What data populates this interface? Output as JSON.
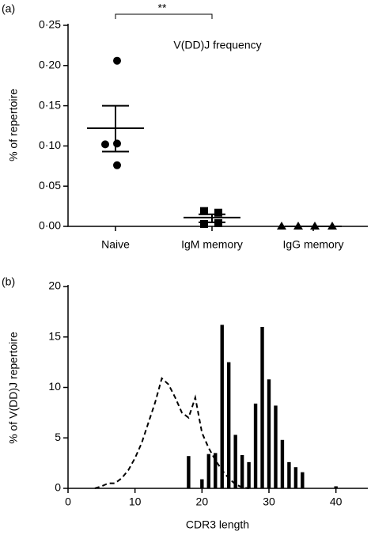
{
  "chart_data": [
    {
      "type": "dot",
      "panel": "(a)",
      "title": "V(DD)J frequency",
      "ylabel": "% of repertoire",
      "annotation": "**",
      "categories": [
        "Naive",
        "IgM memory",
        "IgG memory"
      ],
      "markers": [
        "circle",
        "square",
        "triangle"
      ],
      "points": [
        [
          0.206,
          0.102,
          0.103,
          0.076
        ],
        [
          0.019,
          0.017,
          0.003,
          0.004
        ],
        [
          0,
          0,
          0,
          0
        ]
      ],
      "means": [
        0.122,
        0.011,
        0
      ],
      "sem_upper": [
        0.15,
        0.015,
        0
      ],
      "sem_lower": [
        0.093,
        0.005,
        0
      ],
      "ylim": [
        0,
        0.25
      ],
      "yticks": [
        {
          "value": 0,
          "label": "0·00"
        },
        {
          "value": 0.05,
          "label": "0·05"
        },
        {
          "value": 0.1,
          "label": "0·10"
        },
        {
          "value": 0.15,
          "label": "0·15"
        },
        {
          "value": 0.2,
          "label": "0·20"
        },
        {
          "value": 0.25,
          "label": "0·25"
        }
      ],
      "color": "#000000"
    },
    {
      "type": "bar_line",
      "panel": "(b)",
      "xlabel": "CDR3 length",
      "ylabel": "% of V(DD)J repertoire",
      "series": [
        {
          "type": "bar",
          "color": "#000000",
          "x": [
            18,
            20,
            21,
            22,
            23,
            24,
            25,
            26,
            27,
            28,
            29,
            30,
            31,
            32,
            33,
            34,
            35,
            40
          ],
          "values": [
            3.2,
            0.9,
            3.4,
            3.5,
            16.2,
            12.5,
            5.3,
            3.3,
            2.6,
            8.4,
            16.0,
            10.8,
            8.2,
            4.8,
            2.6,
            2.1,
            1.6,
            0.2
          ]
        },
        {
          "type": "line",
          "color": "#000000",
          "dashed": true,
          "x": [
            4,
            5,
            6,
            7,
            8,
            9,
            10,
            11,
            12,
            13,
            14,
            15,
            16,
            17,
            18,
            19,
            20,
            21,
            22,
            23,
            24,
            25,
            26,
            27
          ],
          "values": [
            0,
            0.2,
            0.5,
            0.5,
            1.0,
            1.8,
            3.0,
            4.5,
            6.5,
            8.5,
            10.9,
            10.3,
            9.0,
            7.5,
            7.0,
            9.0,
            5.5,
            4.0,
            2.8,
            1.8,
            1.0,
            0.4,
            0.1,
            0
          ]
        }
      ],
      "xlim": [
        0,
        45
      ],
      "xticks": [
        0,
        10,
        20,
        30,
        40
      ],
      "ylim": [
        0,
        20
      ],
      "yticks": [
        0,
        5,
        10,
        15,
        20
      ]
    }
  ]
}
